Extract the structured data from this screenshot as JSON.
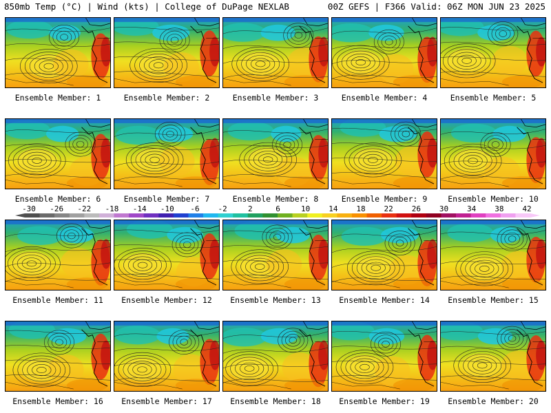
{
  "header": {
    "left": "850mb Temp (°C) | Wind (kts) | College of DuPage NEXLAB",
    "right": "00Z GEFS | F366 Valid: 06Z MON JUN 23 2025"
  },
  "members": [
    {
      "label": "Ensemble Member: 1",
      "variant": 1
    },
    {
      "label": "Ensemble Member: 2",
      "variant": 2
    },
    {
      "label": "Ensemble Member: 3",
      "variant": 3
    },
    {
      "label": "Ensemble Member: 4",
      "variant": 4
    },
    {
      "label": "Ensemble Member: 5",
      "variant": 5
    },
    {
      "label": "Ensemble Member: 6",
      "variant": 6
    },
    {
      "label": "Ensemble Member: 7",
      "variant": 7
    },
    {
      "label": "Ensemble Member: 8",
      "variant": 8
    },
    {
      "label": "Ensemble Member: 9",
      "variant": 9
    },
    {
      "label": "Ensemble Member: 10",
      "variant": 10
    },
    {
      "label": "Ensemble Member: 11",
      "variant": 11
    },
    {
      "label": "Ensemble Member: 12",
      "variant": 12
    },
    {
      "label": "Ensemble Member: 13",
      "variant": 13
    },
    {
      "label": "Ensemble Member: 14",
      "variant": 14
    },
    {
      "label": "Ensemble Member: 15",
      "variant": 15
    },
    {
      "label": "Ensemble Member: 16",
      "variant": 16
    },
    {
      "label": "Ensemble Member: 17",
      "variant": 17
    },
    {
      "label": "Ensemble Member: 18",
      "variant": 18
    },
    {
      "label": "Ensemble Member: 19",
      "variant": 19
    },
    {
      "label": "Ensemble Member: 20",
      "variant": 20
    }
  ],
  "colorbar": {
    "labels": [
      "-30",
      "-26",
      "-22",
      "-18",
      "-14",
      "-10",
      "-6",
      "-2",
      "2",
      "6",
      "10",
      "14",
      "18",
      "22",
      "26",
      "30",
      "34",
      "38",
      "42"
    ],
    "colors": [
      "#4f4f4f",
      "#6a6a6a",
      "#858585",
      "#a0a0a0",
      "#bbbbbb",
      "#d0b0d8",
      "#c078d0",
      "#a048c8",
      "#7030c0",
      "#4020b0",
      "#2040d0",
      "#2080e8",
      "#20b8f0",
      "#30d0d0",
      "#20c0a0",
      "#20a060",
      "#309030",
      "#70b020",
      "#b8d020",
      "#f0f020",
      "#f8d020",
      "#f8b010",
      "#f89000",
      "#f06000",
      "#e83010",
      "#d01010",
      "#b00010",
      "#900020",
      "#a01060",
      "#c02090",
      "#e040c0",
      "#f070e0",
      "#f0a0f0",
      "#f8c8f8"
    ]
  }
}
